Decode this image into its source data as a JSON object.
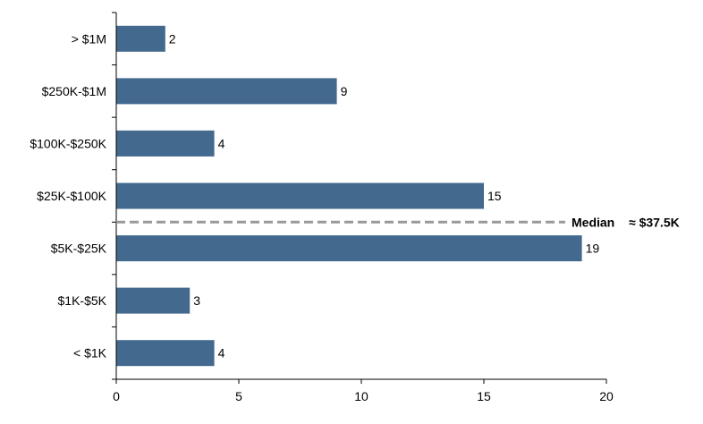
{
  "chart_data": {
    "type": "bar",
    "orientation": "horizontal",
    "categories": [
      "> $1M",
      "$250K-$1M",
      "$100K-$250K",
      "$25K-$100K",
      "$5K-$25K",
      "$1K-$5K",
      "< $1K"
    ],
    "values": [
      2,
      9,
      4,
      15,
      19,
      3,
      4
    ],
    "title": "",
    "xlabel": "",
    "ylabel": "",
    "xlim": [
      0,
      20
    ],
    "xticks": [
      "0",
      "5",
      "10",
      "15",
      "20"
    ],
    "grid": false,
    "legend": "none",
    "bar_color": "#43698f",
    "median": {
      "label": "Median",
      "value_text": "≈ $37.5K",
      "between_categories": [
        "$25K-$100K",
        "$5K-$25K"
      ],
      "line_color": "#999999",
      "style": "dashed"
    }
  }
}
